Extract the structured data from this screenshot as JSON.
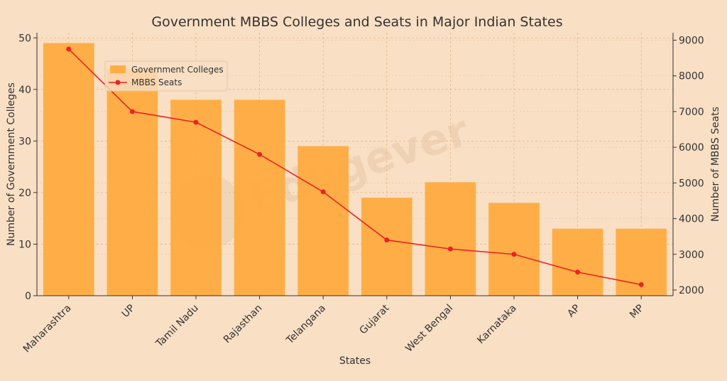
{
  "chart_data": {
    "type": "bar",
    "title": "Government MBBS Colleges and Seats in Major Indian States",
    "xlabel": "States",
    "ylabel": "Number of Government Colleges",
    "y2label": "Number of MBBS Seats",
    "categories": [
      "Maharashtra",
      "UP",
      "Tamil Nadu",
      "Rajasthan",
      "Telangana",
      "Gujarat",
      "West Bengal",
      "Karnataka",
      "AP",
      "MP"
    ],
    "series": [
      {
        "name": "Government Colleges",
        "type": "bar",
        "axis": "left",
        "color": "#ffa93a",
        "values": [
          49,
          44,
          38,
          38,
          29,
          19,
          22,
          18,
          13,
          13
        ]
      },
      {
        "name": "MBBS Seats",
        "type": "line",
        "axis": "right",
        "color": "#ee2222",
        "values": [
          8750,
          7000,
          6700,
          5800,
          4750,
          3400,
          3150,
          3000,
          2500,
          2150
        ]
      }
    ],
    "ylim": [
      0,
      51
    ],
    "y2lim": [
      1840,
      9210
    ],
    "yticks": [
      0,
      10,
      20,
      30,
      40,
      50
    ],
    "y2ticks": [
      2000,
      3000,
      4000,
      5000,
      6000,
      7000,
      8000,
      9000
    ],
    "grid": true,
    "legend": "upper-left",
    "watermark": "Edugever"
  }
}
